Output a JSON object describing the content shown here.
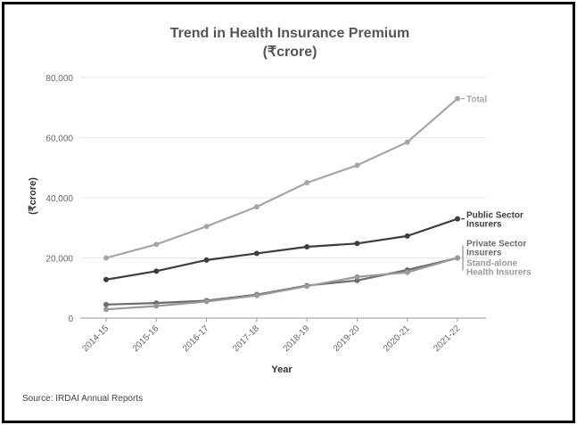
{
  "chart_data": {
    "type": "line",
    "title": "Trend in Health Insurance Premium",
    "subtitle": "(₹crore)",
    "xlabel": "Year",
    "ylabel": "(₹crore)",
    "ylim": [
      0,
      80000
    ],
    "yticks": [
      "0",
      "20,000",
      "40,000",
      "60,000",
      "80,000"
    ],
    "categories": [
      "2014-15",
      "2015-16",
      "2016-17",
      "2017-18",
      "2018-19",
      "2019-20",
      "2020-21",
      "2021-22"
    ],
    "grid": true,
    "series": [
      {
        "name": "Total",
        "label_lines": [
          "Total"
        ],
        "color": "#a6a6a6",
        "values": [
          20000,
          24500,
          30500,
          37000,
          45000,
          50800,
          58500,
          73000
        ]
      },
      {
        "name": "Public Sector Insurers",
        "label_lines": [
          "Public Sector",
          "Insurers"
        ],
        "color": "#3d3d3d",
        "values": [
          12800,
          15600,
          19300,
          21500,
          23700,
          24800,
          27300,
          33000
        ]
      },
      {
        "name": "Private Sector Insurers",
        "label_lines": [
          "Private Sector",
          "Insurers"
        ],
        "color": "#6b6b6b",
        "values": [
          4500,
          5000,
          5800,
          7800,
          10800,
          12500,
          16000,
          20000
        ]
      },
      {
        "name": "Stand-alone Health Insurers",
        "label_lines": [
          "Stand-alone",
          "Health Insurers"
        ],
        "color": "#9a9a9a",
        "values": [
          2900,
          4000,
          5500,
          7500,
          10600,
          13700,
          15200,
          20000
        ]
      }
    ],
    "source": "Source: IRDAI Annual Reports"
  }
}
